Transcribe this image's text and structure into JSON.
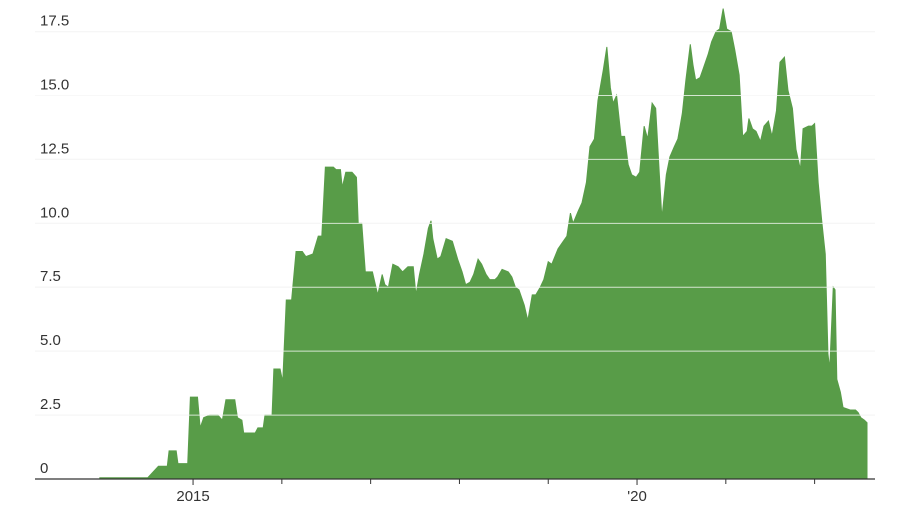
{
  "chart_data": {
    "type": "area",
    "color": "#589c48",
    "grid": true,
    "x": [
      2013.95,
      2014.49,
      2014.61,
      2014.71,
      2014.73,
      2014.81,
      2014.83,
      2014.94,
      2014.97,
      2015.05,
      2015.08,
      2015.12,
      2015.19,
      2015.28,
      2015.33,
      2015.37,
      2015.47,
      2015.5,
      2015.55,
      2015.57,
      2015.7,
      2015.73,
      2015.79,
      2015.81,
      2015.89,
      2015.91,
      2015.98,
      2016.01,
      2016.05,
      2016.11,
      2016.16,
      2016.23,
      2016.27,
      2016.35,
      2016.41,
      2016.45,
      2016.49,
      2016.58,
      2016.61,
      2016.66,
      2016.68,
      2016.72,
      2016.79,
      2016.84,
      2016.86,
      2016.9,
      2016.94,
      2017.02,
      2017.08,
      2017.13,
      2017.16,
      2017.2,
      2017.25,
      2017.31,
      2017.36,
      2017.42,
      2017.48,
      2017.51,
      2017.55,
      2017.6,
      2017.65,
      2017.68,
      2017.7,
      2017.75,
      2017.79,
      2017.85,
      2017.92,
      2017.98,
      2018.03,
      2018.07,
      2018.12,
      2018.16,
      2018.21,
      2018.25,
      2018.3,
      2018.34,
      2018.4,
      2018.43,
      2018.48,
      2018.55,
      2018.59,
      2018.63,
      2018.67,
      2018.73,
      2018.77,
      2018.82,
      2018.86,
      2018.91,
      2018.95,
      2019.0,
      2019.04,
      2019.11,
      2019.17,
      2019.21,
      2019.25,
      2019.28,
      2019.34,
      2019.38,
      2019.43,
      2019.47,
      2019.52,
      2019.56,
      2019.62,
      2019.66,
      2019.7,
      2019.73,
      2019.77,
      2019.82,
      2019.86,
      2019.9,
      2019.94,
      2019.99,
      2020.03,
      2020.08,
      2020.12,
      2020.17,
      2020.21,
      2020.25,
      2020.28,
      2020.33,
      2020.37,
      2020.42,
      2020.46,
      2020.51,
      2020.55,
      2020.6,
      2020.63,
      2020.66,
      2020.71,
      2020.75,
      2020.8,
      2020.84,
      2020.89,
      2020.93,
      2020.97,
      2021.01,
      2021.06,
      2021.1,
      2021.15,
      2021.19,
      2021.24,
      2021.26,
      2021.3,
      2021.34,
      2021.39,
      2021.43,
      2021.48,
      2021.52,
      2021.57,
      2021.61,
      2021.66,
      2021.7,
      2021.75,
      2021.79,
      2021.84,
      2021.87,
      2021.93,
      2021.97,
      2022.0,
      2022.04,
      2022.08,
      2022.12,
      2022.15,
      2022.17,
      2022.21,
      2022.23,
      2022.25,
      2022.29,
      2022.32,
      2022.4,
      2022.46,
      2022.49,
      2022.52,
      2022.56,
      2022.59
    ],
    "values": [
      0.05,
      0.05,
      0.5,
      0.5,
      1.1,
      1.1,
      0.6,
      0.6,
      3.2,
      3.2,
      2.0,
      2.4,
      2.5,
      2.5,
      2.3,
      3.1,
      3.1,
      2.4,
      2.3,
      1.8,
      1.8,
      2.0,
      2.0,
      2.5,
      2.5,
      4.3,
      4.3,
      3.8,
      7.0,
      7.0,
      8.9,
      8.9,
      8.7,
      8.8,
      9.5,
      9.5,
      12.2,
      12.2,
      12.1,
      12.1,
      11.4,
      12.0,
      12.0,
      11.8,
      10.0,
      10.0,
      8.1,
      8.1,
      7.2,
      8.0,
      7.6,
      7.5,
      8.4,
      8.3,
      8.1,
      8.3,
      8.3,
      7.2,
      8.0,
      8.8,
      9.8,
      10.1,
      9.4,
      8.6,
      8.7,
      9.4,
      9.3,
      8.6,
      8.1,
      7.6,
      7.7,
      8.0,
      8.6,
      8.4,
      8.0,
      7.8,
      7.8,
      7.9,
      8.2,
      8.1,
      7.9,
      7.5,
      7.4,
      6.8,
      6.2,
      7.2,
      7.2,
      7.5,
      7.8,
      8.5,
      8.4,
      9.0,
      9.3,
      9.5,
      10.4,
      10.0,
      10.5,
      10.8,
      11.6,
      13.0,
      13.3,
      14.8,
      16.0,
      16.9,
      15.3,
      14.7,
      15.0,
      13.4,
      13.4,
      12.3,
      11.9,
      11.8,
      12.0,
      13.8,
      13.3,
      14.7,
      14.5,
      12.0,
      10.2,
      11.9,
      12.6,
      13.0,
      13.3,
      14.3,
      15.6,
      17.0,
      16.2,
      15.6,
      15.7,
      16.1,
      16.6,
      17.1,
      17.5,
      17.6,
      18.4,
      17.6,
      17.5,
      16.8,
      15.8,
      13.4,
      13.6,
      14.1,
      13.7,
      13.6,
      13.2,
      13.8,
      14.0,
      13.4,
      14.4,
      16.3,
      16.5,
      15.2,
      14.5,
      12.9,
      12.1,
      13.7,
      13.8,
      13.8,
      13.9,
      11.6,
      10.1,
      8.8,
      4.9,
      4.3,
      7.5,
      7.4,
      3.9,
      3.4,
      2.8,
      2.7,
      2.7,
      2.6,
      2.4,
      2.3,
      2.2
    ],
    "xlim": [
      2013.22,
      2022.68
    ],
    "xticks": [
      2015,
      {
        "value": 2020,
        "label": "'20"
      }
    ],
    "xminorticks": [
      2016,
      2017,
      2018,
      2019,
      2021,
      2022
    ],
    "ylim": [
      0,
      18.5
    ],
    "yticks": [
      0,
      2.5,
      {
        "value": 5,
        "label": "5.0"
      },
      7.5,
      {
        "value": 10,
        "label": "10.0"
      },
      12.5,
      {
        "value": 15,
        "label": "15.0"
      },
      17.5
    ]
  }
}
